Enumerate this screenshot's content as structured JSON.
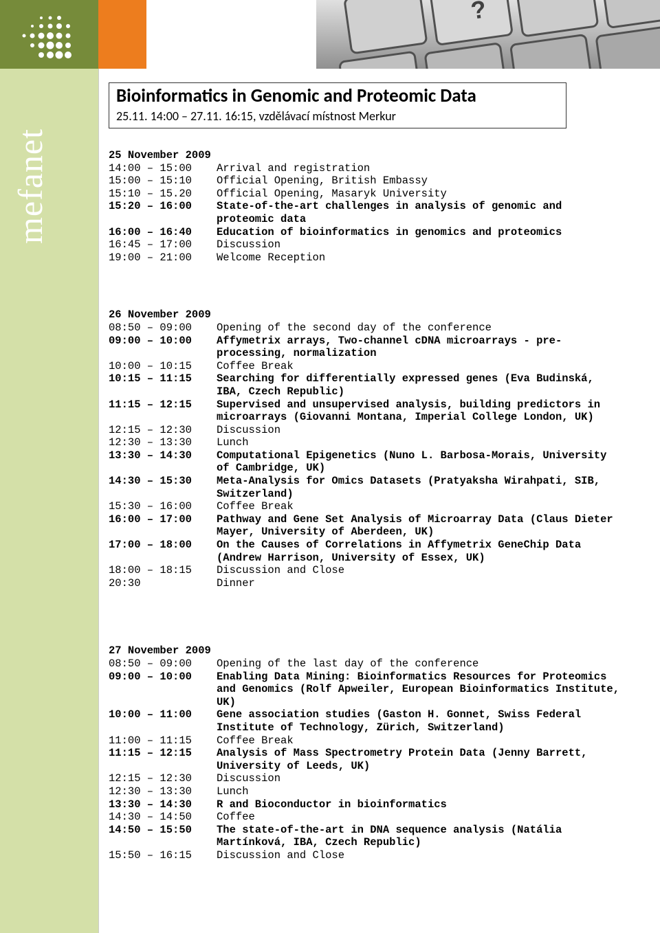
{
  "colors": {
    "olive": "#768b3a",
    "orange": "#ed7d1e",
    "sidebar": "#d4e0a8",
    "white": "#ffffff",
    "text": "#000000",
    "border": "#333333"
  },
  "brand": {
    "name": "mefanet"
  },
  "title": {
    "main": "Bioinformatics in Genomic and Proteomic Data",
    "sub": "25.11. 14:00 – 27.11. 16:15, vzdělávací místnost Merkur"
  },
  "days": [
    {
      "heading": "25 November 2009",
      "rows": [
        {
          "time": "14:00 – 15:00",
          "desc": "Arrival and registration",
          "bold": false
        },
        {
          "time": "15:00 – 15:10",
          "desc": "Official Opening, British Embassy",
          "bold": false
        },
        {
          "time": "15:10 – 15.20",
          "desc": "Official Opening, Masaryk University",
          "bold": false
        },
        {
          "time": "15:20 – 16:00",
          "desc": "State-of-the-art challenges in analysis of genomic and proteomic data",
          "bold": true
        },
        {
          "time": "16:00 – 16:40",
          "desc": "Education of bioinformatics in genomics and proteomics",
          "bold": true
        },
        {
          "time": "16:45 – 17:00",
          "desc": "Discussion",
          "bold": false
        },
        {
          "time": "19:00 – 21:00",
          "desc": "Welcome Reception",
          "bold": false
        }
      ]
    },
    {
      "heading": "26 November 2009",
      "rows": [
        {
          "time": "08:50 – 09:00",
          "desc": "Opening of the second day of the conference",
          "bold": false
        },
        {
          "time": "09:00 – 10:00",
          "desc": "Affymetrix arrays, Two-channel cDNA microarrays - pre-processing, normalization",
          "bold": true
        },
        {
          "time": "10:00 – 10:15",
          "desc": "Coffee Break",
          "bold": false
        },
        {
          "time": "10:15 – 11:15",
          "desc": "Searching for differentially expressed genes (Eva Budinská, IBA, Czech Republic)",
          "bold": true
        },
        {
          "time": "11:15 – 12:15",
          "desc": "Supervised and unsupervised analysis, building predictors in microarrays (Giovanni Montana, Imperial College London, UK)",
          "bold": true
        },
        {
          "time": "12:15 – 12:30",
          "desc": "Discussion",
          "bold": false
        },
        {
          "time": "12:30 – 13:30",
          "desc": "Lunch",
          "bold": false
        },
        {
          "time": "13:30 – 14:30",
          "desc": "Computational Epigenetics (Nuno L. Barbosa-Morais, University of Cambridge, UK)",
          "bold": true
        },
        {
          "time": "14:30 – 15:30",
          "desc": "Meta-Analysis for Omics Datasets (Pratyaksha Wirahpati, SIB, Switzerland)",
          "bold": true
        },
        {
          "time": "15:30 – 16:00",
          "desc": "Coffee Break",
          "bold": false
        },
        {
          "time": "16:00 – 17:00",
          "desc": "Pathway and Gene Set Analysis of Microarray Data (Claus Dieter Mayer, University of Aberdeen, UK)",
          "bold": true
        },
        {
          "time": "17:00 – 18:00",
          "desc": "On the Causes of Correlations in Affymetrix GeneChip Data (Andrew Harrison, University of Essex, UK)",
          "bold": true
        },
        {
          "time": "18:00 – 18:15",
          "desc": "Discussion and Close",
          "bold": false
        },
        {
          "time": "20:30",
          "desc": "Dinner",
          "bold": false
        }
      ]
    },
    {
      "heading": "27 November 2009",
      "rows": [
        {
          "time": "08:50 – 09:00",
          "desc": "Opening of the last day of the conference",
          "bold": false
        },
        {
          "time": "09:00 – 10:00",
          "desc": "Enabling Data Mining: Bioinformatics Resources for Proteomics and Genomics (Rolf Apweiler, European Bioinformatics Institute, UK)",
          "bold": true
        },
        {
          "time": "10:00 – 11:00",
          "desc": "Gene association studies (Gaston H. Gonnet, Swiss Federal Institute of Technology, Zürich, Switzerland)",
          "bold": true
        },
        {
          "time": "11:00 – 11:15",
          "desc": "Coffee Break",
          "bold": false
        },
        {
          "time": "11:15 – 12:15",
          "desc": "Analysis of Mass Spectrometry Protein Data (Jenny Barrett, University of Leeds, UK)",
          "bold": true
        },
        {
          "time": "12:15 – 12:30",
          "desc": "Discussion",
          "bold": false
        },
        {
          "time": "12:30 – 13:30",
          "desc": "Lunch",
          "bold": false
        },
        {
          "time": "13:30 – 14:30",
          "desc": "R and Bioconductor in bioinformatics",
          "bold": true
        },
        {
          "time": "14:30 – 14:50",
          "desc": "Coffee",
          "bold": false
        },
        {
          "time": "14:50 – 15:50",
          "desc": "The state-of-the-art in DNA sequence analysis (Natália Martínková, IBA, Czech Republic)",
          "bold": true
        },
        {
          "time": "15:50 – 16:15",
          "desc": "Discussion and Close",
          "bold": false
        }
      ]
    }
  ]
}
